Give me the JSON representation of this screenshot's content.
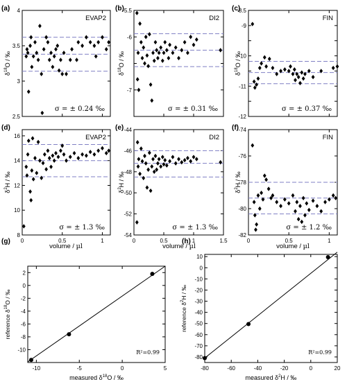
{
  "style": {
    "ref_line_color": "#7f7fc4",
    "marker_color": "#000000"
  },
  "figure": {
    "x_common_label": "volume / µl",
    "x_common_label_parts": {
      "text": "volume / ",
      "unit": "µl"
    }
  },
  "chart_data": [
    {
      "panel": "(a)",
      "type": "scatter",
      "title": "EVAP2",
      "ylabel": "δ18O / ‰",
      "ylabel_parts": {
        "delta": "δ",
        "sup": "18",
        "rest": "O  /  ‰"
      },
      "xlim": [
        0,
        1.1
      ],
      "ylim": [
        2.5,
        4.0
      ],
      "xticks": [
        0,
        0.5,
        1
      ],
      "xticklabels": [
        "",
        "",
        ""
      ],
      "yticks": [
        2.5,
        3,
        3.5,
        4
      ],
      "yticklabels": [
        "2.5",
        "3",
        "3.5",
        "4"
      ],
      "hlines": [
        3.62,
        3.38,
        3.14
      ],
      "annotation": "σ = ± 0.24 ‰",
      "points": [
        [
          0.05,
          3.35
        ],
        [
          0.06,
          3.45
        ],
        [
          0.07,
          3.4
        ],
        [
          0.08,
          2.85
        ],
        [
          0.1,
          3.5
        ],
        [
          0.11,
          3.62
        ],
        [
          0.12,
          3.2
        ],
        [
          0.14,
          3.35
        ],
        [
          0.16,
          3.55
        ],
        [
          0.18,
          3.4
        ],
        [
          0.2,
          3.3
        ],
        [
          0.22,
          3.78
        ],
        [
          0.24,
          3.1
        ],
        [
          0.25,
          2.55
        ],
        [
          0.27,
          3.45
        ],
        [
          0.3,
          3.62
        ],
        [
          0.32,
          3.55
        ],
        [
          0.34,
          3.3
        ],
        [
          0.36,
          3.4
        ],
        [
          0.38,
          3.2
        ],
        [
          0.4,
          3.35
        ],
        [
          0.42,
          3.45
        ],
        [
          0.44,
          3.5
        ],
        [
          0.46,
          3.15
        ],
        [
          0.48,
          3.3
        ],
        [
          0.5,
          3.1
        ],
        [
          0.52,
          3.4
        ],
        [
          0.55,
          3.1
        ],
        [
          0.6,
          3.3
        ],
        [
          0.62,
          3.45
        ],
        [
          0.68,
          3.3
        ],
        [
          0.7,
          3.55
        ],
        [
          0.75,
          3.5
        ],
        [
          0.8,
          3.62
        ],
        [
          0.85,
          3.55
        ],
        [
          0.9,
          3.5
        ],
        [
          0.92,
          3.35
        ],
        [
          0.95,
          3.55
        ],
        [
          1.0,
          3.62
        ],
        [
          1.05,
          3.45
        ],
        [
          1.08,
          3.55
        ]
      ]
    },
    {
      "panel": "(b)",
      "type": "scatter",
      "title": "DI2",
      "ylabel": "δ18O / ‰",
      "ylabel_parts": {
        "delta": "δ",
        "sup": "18",
        "rest": "O  /  ‰"
      },
      "xlim": [
        0,
        1.5
      ],
      "ylim": [
        -7.5,
        -5.5
      ],
      "xticks": [
        0,
        0.5,
        1,
        1.5
      ],
      "xticklabels": [
        "",
        "",
        "",
        ""
      ],
      "yticks": [
        -7.5,
        -7,
        -6.5,
        -6,
        -5.5
      ],
      "yticklabels": [
        "",
        "-7",
        "",
        "-6",
        "-5.5"
      ],
      "hlines": [
        -5.94,
        -6.25,
        -6.56
      ],
      "annotation": "σ = ± 0.31 ‰",
      "points": [
        [
          0.05,
          -5.55
        ],
        [
          0.06,
          -6.8
        ],
        [
          0.07,
          -6.3
        ],
        [
          0.08,
          -7.0
        ],
        [
          0.1,
          -5.75
        ],
        [
          0.12,
          -6.1
        ],
        [
          0.14,
          -6.4
        ],
        [
          0.16,
          -6.2
        ],
        [
          0.18,
          -6.5
        ],
        [
          0.2,
          -6.0
        ],
        [
          0.22,
          -6.35
        ],
        [
          0.24,
          -6.55
        ],
        [
          0.26,
          -5.95
        ],
        [
          0.28,
          -6.9
        ],
        [
          0.3,
          -7.2
        ],
        [
          0.32,
          -6.3
        ],
        [
          0.34,
          -6.45
        ],
        [
          0.36,
          -6.1
        ],
        [
          0.38,
          -6.25
        ],
        [
          0.4,
          -6.4
        ],
        [
          0.42,
          -6.3
        ],
        [
          0.45,
          -6.2
        ],
        [
          0.48,
          -6.45
        ],
        [
          0.5,
          -6.3
        ],
        [
          0.52,
          -6.1
        ],
        [
          0.55,
          -6.25
        ],
        [
          0.58,
          -6.4
        ],
        [
          0.6,
          -6.15
        ],
        [
          0.65,
          -6.3
        ],
        [
          0.7,
          -6.2
        ],
        [
          0.75,
          -6.4
        ],
        [
          0.8,
          -6.25
        ],
        [
          0.85,
          -6.1
        ],
        [
          0.9,
          -6.3
        ],
        [
          0.95,
          -6.0
        ],
        [
          1.0,
          -6.15
        ],
        [
          1.05,
          -6.05
        ],
        [
          1.45,
          -6.25
        ]
      ]
    },
    {
      "panel": "(c)",
      "type": "scatter",
      "title": "FIN",
      "ylabel": "δ18O / ‰",
      "ylabel_parts": {
        "delta": "δ",
        "sup": "18",
        "rest": "O  /  ‰"
      },
      "xlim": [
        0,
        1.1
      ],
      "ylim": [
        -12,
        -8.5
      ],
      "xticks": [
        0,
        0.5,
        1
      ],
      "xticklabels": [
        "",
        "",
        ""
      ],
      "yticks": [
        -12,
        -11.5,
        -11,
        -10.5,
        -10,
        -9.5,
        -9,
        -8.5
      ],
      "yticklabels": [
        "-12",
        "",
        "-11",
        "",
        "-10",
        "",
        "-9",
        "-8.5"
      ],
      "hlines": [
        -10.18,
        -10.55,
        -10.92
      ],
      "annotation": "σ = ± 0.37 ‰",
      "points": [
        [
          0.05,
          -8.95
        ],
        [
          0.07,
          -10.85
        ],
        [
          0.08,
          -11.05
        ],
        [
          0.1,
          -10.95
        ],
        [
          0.12,
          -10.75
        ],
        [
          0.14,
          -10.4
        ],
        [
          0.16,
          -10.25
        ],
        [
          0.2,
          -10.05
        ],
        [
          0.22,
          -10.35
        ],
        [
          0.26,
          -10.1
        ],
        [
          0.3,
          -10.4
        ],
        [
          0.35,
          -10.6
        ],
        [
          0.4,
          -10.5
        ],
        [
          0.45,
          -10.45
        ],
        [
          0.5,
          -10.5
        ],
        [
          0.52,
          -10.35
        ],
        [
          0.55,
          -10.6
        ],
        [
          0.57,
          -10.45
        ],
        [
          0.58,
          -10.8
        ],
        [
          0.6,
          -10.6
        ],
        [
          0.62,
          -10.7
        ],
        [
          0.64,
          -10.9
        ],
        [
          0.66,
          -10.55
        ],
        [
          0.68,
          -10.75
        ],
        [
          0.7,
          -10.6
        ],
        [
          0.75,
          -10.5
        ],
        [
          0.8,
          -10.7
        ],
        [
          0.9,
          -10.5
        ],
        [
          1.05,
          -10.4
        ],
        [
          1.1,
          -10.35
        ]
      ]
    },
    {
      "panel": "(d)",
      "type": "scatter",
      "title": "EVAP2",
      "ylabel": "δ2H / ‰",
      "ylabel_parts": {
        "delta": "δ",
        "sup": "2",
        "rest": "H  /  ‰"
      },
      "xlim": [
        0,
        1.1
      ],
      "ylim": [
        8,
        16.5
      ],
      "xticks": [
        0,
        0.5,
        1
      ],
      "xticklabels": [
        "0",
        "0.5",
        "1"
      ],
      "yticks": [
        8,
        10,
        12,
        14,
        16
      ],
      "yticklabels": [
        "8",
        "10",
        "12",
        "14",
        "16"
      ],
      "hlines": [
        15.3,
        14.0,
        12.7
      ],
      "annotation": "σ = ± 1.3 ‰",
      "points": [
        [
          0.02,
          8.7
        ],
        [
          0.05,
          13.5
        ],
        [
          0.06,
          12.8
        ],
        [
          0.07,
          14.5
        ],
        [
          0.08,
          15.6
        ],
        [
          0.1,
          11.5
        ],
        [
          0.11,
          10.8
        ],
        [
          0.12,
          13.2
        ],
        [
          0.13,
          15.8
        ],
        [
          0.14,
          12.5
        ],
        [
          0.16,
          14.2
        ],
        [
          0.18,
          13.0
        ],
        [
          0.2,
          15.5
        ],
        [
          0.22,
          14.0
        ],
        [
          0.24,
          12.6
        ],
        [
          0.26,
          13.8
        ],
        [
          0.28,
          14.5
        ],
        [
          0.3,
          13.3
        ],
        [
          0.32,
          14.8
        ],
        [
          0.34,
          14.2
        ],
        [
          0.36,
          13.5
        ],
        [
          0.38,
          14.4
        ],
        [
          0.4,
          14.0
        ],
        [
          0.42,
          14.6
        ],
        [
          0.45,
          14.3
        ],
        [
          0.48,
          14.8
        ],
        [
          0.5,
          15.2
        ],
        [
          0.52,
          14.5
        ],
        [
          0.55,
          14.0
        ],
        [
          0.6,
          14.3
        ],
        [
          0.65,
          14.6
        ],
        [
          0.7,
          14.2
        ],
        [
          0.75,
          14.5
        ],
        [
          0.8,
          14.4
        ],
        [
          0.85,
          14.7
        ],
        [
          0.9,
          14.5
        ],
        [
          0.95,
          14.8
        ],
        [
          1.0,
          15.0
        ],
        [
          1.05,
          14.6
        ],
        [
          1.08,
          14.8
        ]
      ]
    },
    {
      "panel": "(e)",
      "type": "scatter",
      "title": "DI2",
      "ylabel": "δ2H / ‰",
      "ylabel_parts": {
        "delta": "δ",
        "sup": "2",
        "rest": "H  /  ‰"
      },
      "xlim": [
        0,
        1.5
      ],
      "ylim": [
        -54,
        -44
      ],
      "xticks": [
        0,
        0.5,
        1,
        1.5
      ],
      "xticklabels": [
        "0",
        "0.5",
        "1",
        "1.5"
      ],
      "yticks": [
        -54,
        -52,
        -50,
        -48,
        -46,
        -44
      ],
      "yticklabels": [
        "-54",
        "-52",
        "-50",
        "-48",
        "-46",
        "-44"
      ],
      "hlines": [
        -46.0,
        -47.2,
        -48.5
      ],
      "annotation": "σ = ± 1.3 ‰",
      "points": [
        [
          0.05,
          -52.8
        ],
        [
          0.06,
          -45.2
        ],
        [
          0.07,
          -47.5
        ],
        [
          0.08,
          -46.8
        ],
        [
          0.1,
          -48.2
        ],
        [
          0.12,
          -45.8
        ],
        [
          0.14,
          -47.0
        ],
        [
          0.16,
          -48.6
        ],
        [
          0.18,
          -46.5
        ],
        [
          0.2,
          -47.2
        ],
        [
          0.22,
          -49.5
        ],
        [
          0.24,
          -47.8
        ],
        [
          0.26,
          -46.2
        ],
        [
          0.28,
          -49.8
        ],
        [
          0.3,
          -47.5
        ],
        [
          0.32,
          -46.8
        ],
        [
          0.34,
          -48.0
        ],
        [
          0.36,
          -46.5
        ],
        [
          0.38,
          -47.8
        ],
        [
          0.4,
          -47.2
        ],
        [
          0.42,
          -46.8
        ],
        [
          0.45,
          -47.5
        ],
        [
          0.48,
          -46.6
        ],
        [
          0.5,
          -47.3
        ],
        [
          0.52,
          -46.9
        ],
        [
          0.55,
          -47.4
        ],
        [
          0.6,
          -47.0
        ],
        [
          0.65,
          -46.6
        ],
        [
          0.7,
          -47.2
        ],
        [
          0.75,
          -46.8
        ],
        [
          0.8,
          -47.1
        ],
        [
          0.85,
          -46.9
        ],
        [
          0.9,
          -46.7
        ],
        [
          0.95,
          -47.0
        ],
        [
          1.0,
          -46.6
        ],
        [
          1.05,
          -46.8
        ],
        [
          1.45,
          -47.1
        ]
      ]
    },
    {
      "panel": "(f)",
      "type": "scatter",
      "title": "FIN",
      "ylabel": "δ2H / ‰",
      "ylabel_parts": {
        "delta": "δ",
        "sup": "2",
        "rest": "H  /  ‰"
      },
      "xlim": [
        0,
        1.1
      ],
      "ylim": [
        -82,
        -74
      ],
      "xticks": [
        0,
        0.5,
        1
      ],
      "xticklabels": [
        "0",
        "0.5",
        "1"
      ],
      "yticks": [
        -82,
        -80,
        -78,
        -76,
        -74
      ],
      "yticklabels": [
        "-82",
        "-80",
        "-78",
        "-76",
        "-74"
      ],
      "hlines": [
        -78.0,
        -79.2,
        -80.4
      ],
      "annotation": "σ = ± 1.2 ‰",
      "points": [
        [
          0.05,
          -75.2
        ],
        [
          0.07,
          -79.5
        ],
        [
          0.08,
          -80.5
        ],
        [
          0.09,
          -81.6
        ],
        [
          0.1,
          -81.2
        ],
        [
          0.12,
          -79.0
        ],
        [
          0.14,
          -80.0
        ],
        [
          0.16,
          -78.8
        ],
        [
          0.18,
          -79.3
        ],
        [
          0.2,
          -77.5
        ],
        [
          0.22,
          -77.8
        ],
        [
          0.25,
          -78.5
        ],
        [
          0.28,
          -79.2
        ],
        [
          0.3,
          -79.0
        ],
        [
          0.35,
          -79.5
        ],
        [
          0.4,
          -79.8
        ],
        [
          0.45,
          -79.3
        ],
        [
          0.5,
          -79.6
        ],
        [
          0.55,
          -79.0
        ],
        [
          0.58,
          -80.2
        ],
        [
          0.6,
          -79.5
        ],
        [
          0.62,
          -80.8
        ],
        [
          0.64,
          -79.8
        ],
        [
          0.66,
          -81.0
        ],
        [
          0.68,
          -79.2
        ],
        [
          0.7,
          -80.5
        ],
        [
          0.72,
          -79.6
        ],
        [
          0.75,
          -80.1
        ],
        [
          0.8,
          -79.4
        ],
        [
          0.85,
          -79.8
        ],
        [
          0.9,
          -80.2
        ],
        [
          0.95,
          -79.5
        ],
        [
          1.0,
          -79.3
        ],
        [
          1.05,
          -79.0
        ],
        [
          1.08,
          -79.2
        ]
      ]
    },
    {
      "panel": "(g)",
      "type": "scatter",
      "title": "",
      "xlabel": "measured δ18O / ‰",
      "xlabel_parts": {
        "pre": "measured  δ",
        "sup": "18",
        "rest": "O  /  ‰"
      },
      "ylabel": "reference δ18O / ‰",
      "ylabel_parts": {
        "pre": "reference δ",
        "sup": "18",
        "rest": "O  /  ‰"
      },
      "xlim": [
        -11,
        5
      ],
      "ylim": [
        -12,
        3
      ],
      "xticks": [
        -10,
        -5,
        0,
        5
      ],
      "xticklabels": [
        "-10",
        "-5",
        "0",
        "5"
      ],
      "yticks": [
        -10,
        -8,
        -6,
        -4,
        -2,
        0,
        2
      ],
      "yticklabels": [
        "-10",
        "-8",
        "-6",
        "-4",
        "-2",
        "0",
        "2"
      ],
      "fit_line": [
        [
          -11,
          -11.9
        ],
        [
          5,
          3.0
        ]
      ],
      "annotation": "R²=0.99",
      "points": [
        [
          -10.6,
          -11.6
        ],
        [
          -6.2,
          -7.6
        ],
        [
          3.5,
          1.8
        ]
      ]
    },
    {
      "panel": "(h)",
      "type": "scatter",
      "title": "",
      "xlabel": "measured δ2H / ‰",
      "xlabel_parts": {
        "pre": "measured  δ",
        "sup": "2",
        "rest": "H /  ‰"
      },
      "ylabel": "reference δ2H / ‰",
      "ylabel_parts": {
        "pre": "reference δ",
        "sup": "2",
        "rest": "H  /  ‰"
      },
      "xlim": [
        -80,
        20
      ],
      "ylim": [
        -85,
        12
      ],
      "xticks": [
        -80,
        -60,
        -40,
        -20,
        0,
        20
      ],
      "xticklabels": [
        "-80",
        "-60",
        "-40",
        "-20",
        "0",
        "20"
      ],
      "yticks": [
        -80,
        -70,
        -60,
        -50,
        -40,
        -30,
        -20,
        -10,
        0,
        10
      ],
      "yticklabels": [
        "-80",
        "-70",
        "-60",
        "-50",
        "-40",
        "-30",
        "-20",
        "-10",
        "0",
        "10"
      ],
      "fit_line": [
        [
          -80,
          -81
        ],
        [
          20,
          14
        ]
      ],
      "annotation": "R²=0.99",
      "points": [
        [
          -80,
          -81
        ],
        [
          -47,
          -50.5
        ],
        [
          13,
          9.5
        ]
      ]
    }
  ]
}
